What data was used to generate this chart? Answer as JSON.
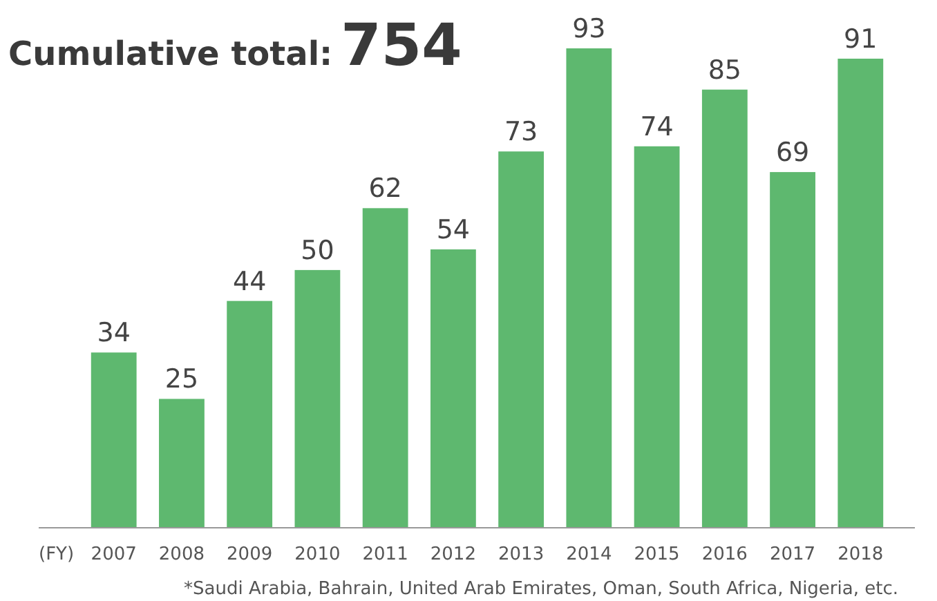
{
  "chart_data": {
    "type": "bar",
    "title": "Cumulative total:",
    "subtitle": "754",
    "xlabel": "(FY)",
    "categories": [
      "2007",
      "2008",
      "2009",
      "2010",
      "2011",
      "2012",
      "2013",
      "2014",
      "2015",
      "2016",
      "2017",
      "2018"
    ],
    "values": [
      34,
      25,
      44,
      50,
      62,
      54,
      73,
      93,
      74,
      85,
      69,
      91
    ],
    "color": "#5eb86f",
    "data_labels": true,
    "annotations": [
      "*Saudi Arabia, Bahrain, United Arab Emirates, Oman, South Africa, Nigeria, etc."
    ]
  }
}
